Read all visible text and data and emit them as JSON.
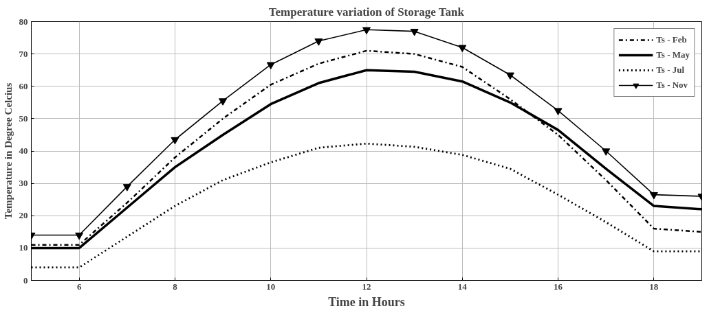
{
  "chart_data": {
    "type": "line",
    "title": "Temperature variation of Storage Tank",
    "xlabel": "Time in Hours",
    "ylabel": "Temperature in Degree Celcius",
    "x": [
      5,
      6,
      7,
      8,
      9,
      10,
      11,
      12,
      13,
      14,
      15,
      16,
      17,
      18,
      19
    ],
    "series": [
      {
        "name": "Ts - Feb",
        "color": "#000000",
        "line_style": "dashdot",
        "marker": "none",
        "values": [
          11,
          11,
          24,
          38,
          50,
          60.5,
          67,
          71,
          70,
          66,
          56,
          45,
          31,
          16,
          15
        ]
      },
      {
        "name": "Ts - May",
        "color": "#000000",
        "line_style": "solid",
        "marker": "none",
        "values": [
          10,
          10,
          22.5,
          35,
          45,
          54.5,
          61,
          65,
          64.5,
          61.5,
          55,
          46.5,
          34.5,
          23,
          22
        ]
      },
      {
        "name": "Ts - Jul",
        "color": "#000000",
        "line_style": "dotted",
        "marker": "none",
        "values": [
          4,
          4,
          13.5,
          23,
          31,
          36.5,
          41,
          42.3,
          41.3,
          38.8,
          34.5,
          26.5,
          18,
          9,
          9
        ]
      },
      {
        "name": "Ts - Nov",
        "color": "#000000",
        "line_style": "solid",
        "marker": "triangle",
        "values": [
          14,
          14,
          29,
          43.5,
          55.5,
          66.7,
          74,
          77.5,
          77,
          72,
          63.5,
          52.5,
          40,
          26.5,
          26
        ]
      }
    ],
    "xlim": [
      5,
      19
    ],
    "xticks": [
      6,
      8,
      10,
      12,
      14,
      16,
      18
    ],
    "ylim": [
      0,
      80
    ],
    "yticks": [
      0,
      10,
      20,
      30,
      40,
      50,
      60,
      70,
      80
    ],
    "grid": true,
    "legend": "top right"
  }
}
